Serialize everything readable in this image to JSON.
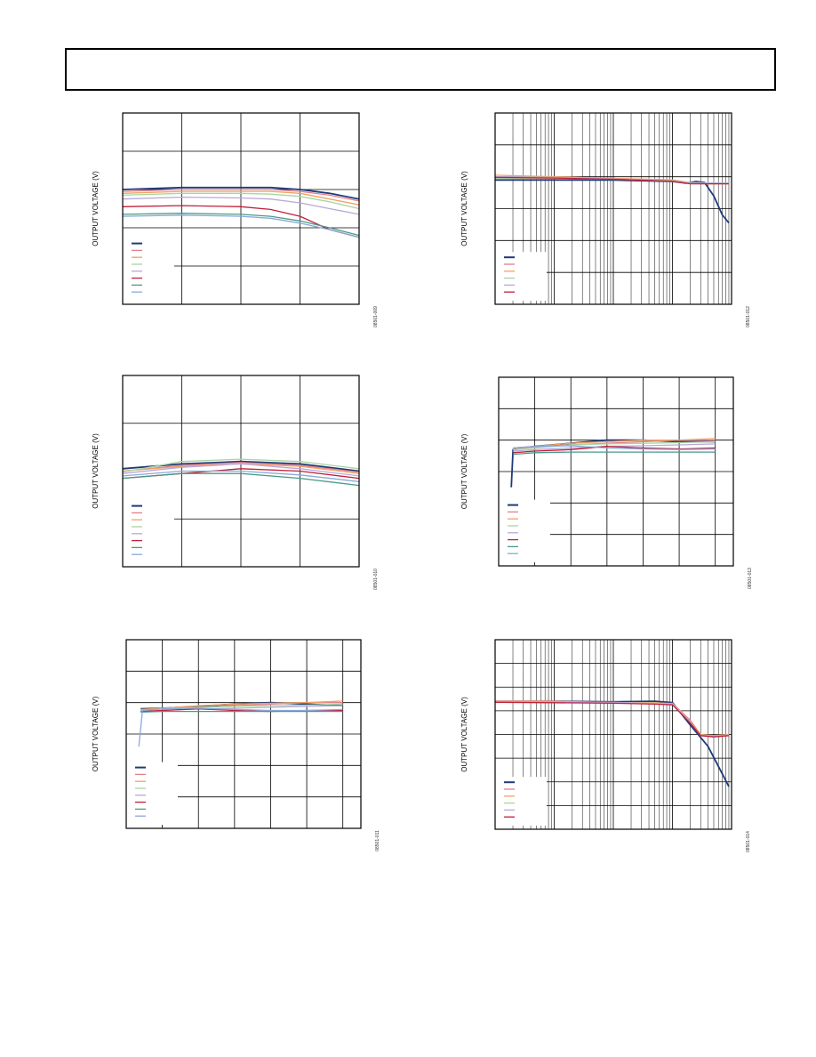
{
  "page": {
    "header_text": ""
  },
  "colors": [
    "#1f3a7a",
    "#e0808a",
    "#f2a065",
    "#a8d5a0",
    "#b8a8d8",
    "#c0203a",
    "#4a9a8a",
    "#8aa8d8"
  ],
  "charts": [
    {
      "ylabel": "OUTPUT VOLTAGE (V)",
      "fig_id": "08501-009",
      "legend_count": 8,
      "chart_data": {
        "type": "line",
        "xscale": "linear",
        "xlim": [
          0,
          4
        ],
        "ylim": [
          0,
          5
        ],
        "grid_x": [
          1,
          2,
          3
        ],
        "grid_y": [
          1,
          2,
          3,
          4
        ],
        "series": [
          {
            "x": [
              0,
              1,
              2,
              2.5,
              3,
              3.5,
              4
            ],
            "y": [
              3.0,
              3.05,
              3.05,
              3.05,
              3.0,
              2.9,
              2.75
            ]
          },
          {
            "x": [
              0,
              1,
              2,
              2.5,
              3,
              3.5,
              4
            ],
            "y": [
              2.95,
              3.0,
              3.0,
              3.0,
              2.95,
              2.85,
              2.7
            ]
          },
          {
            "x": [
              0,
              1,
              2,
              2.5,
              3,
              3.5,
              4
            ],
            "y": [
              2.9,
              2.95,
              2.95,
              2.95,
              2.9,
              2.75,
              2.6
            ]
          },
          {
            "x": [
              0,
              1,
              2,
              2.5,
              3,
              3.5,
              4
            ],
            "y": [
              2.85,
              2.9,
              2.9,
              2.88,
              2.82,
              2.68,
              2.5
            ]
          },
          {
            "x": [
              0,
              1,
              2,
              2.5,
              3,
              3.5,
              4
            ],
            "y": [
              2.75,
              2.8,
              2.78,
              2.75,
              2.65,
              2.5,
              2.35
            ]
          },
          {
            "x": [
              0,
              1,
              2,
              2.5,
              3,
              3.5,
              4
            ],
            "y": [
              2.55,
              2.58,
              2.55,
              2.48,
              2.3,
              1.95,
              1.75
            ]
          },
          {
            "x": [
              0,
              1,
              2,
              2.5,
              3,
              3.5,
              4
            ],
            "y": [
              2.35,
              2.38,
              2.35,
              2.3,
              2.18,
              2.0,
              1.8
            ]
          },
          {
            "x": [
              0,
              1,
              2,
              2.5,
              3,
              3.5,
              4
            ],
            "y": [
              2.3,
              2.33,
              2.3,
              2.25,
              2.12,
              1.95,
              1.75
            ]
          }
        ]
      }
    },
    {
      "ylabel": "OUTPUT VOLTAGE (V)",
      "fig_id": "08501-012",
      "legend_count": 6,
      "chart_data": {
        "type": "line",
        "xscale": "log",
        "xlim": [
          1,
          10000
        ],
        "ylim": [
          0,
          6
        ],
        "grid_x": [
          10,
          100,
          1000
        ],
        "grid_y": [
          1,
          2,
          3,
          4,
          5
        ],
        "series": [
          {
            "x": [
              1,
              10,
              100,
              1000,
              1700,
              2500,
              3500,
              5000,
              7000,
              9000
            ],
            "y": [
              3.9,
              3.9,
              3.9,
              3.85,
              3.8,
              3.85,
              3.82,
              3.4,
              2.8,
              2.55
            ]
          },
          {
            "x": [
              1,
              10,
              100,
              1000,
              2000,
              5000,
              9000
            ],
            "y": [
              4.0,
              3.98,
              3.95,
              3.9,
              3.8,
              3.8,
              3.8
            ]
          },
          {
            "x": [
              1,
              10,
              100,
              1000,
              2000,
              5000,
              9000
            ],
            "y": [
              4.05,
              4.0,
              3.95,
              3.9,
              3.82,
              3.8,
              3.8
            ]
          },
          {
            "x": [
              1,
              10,
              100,
              1000,
              2000,
              5000,
              9000
            ],
            "y": [
              3.95,
              3.95,
              3.92,
              3.88,
              3.8,
              3.78,
              3.78
            ]
          },
          {
            "x": [
              1,
              10,
              100,
              1000,
              2000,
              5000,
              9000
            ],
            "y": [
              4.0,
              3.98,
              3.93,
              3.85,
              3.8,
              3.8,
              3.8
            ]
          },
          {
            "x": [
              1,
              10,
              100,
              1000,
              2000,
              5000,
              9000
            ],
            "y": [
              3.98,
              3.96,
              3.92,
              3.86,
              3.78,
              3.78,
              3.78
            ]
          }
        ]
      }
    },
    {
      "ylabel": "OUTPUT VOLTAGE (V)",
      "fig_id": "08501-010",
      "legend_count": 8,
      "chart_data": {
        "type": "line",
        "xscale": "linear",
        "xlim": [
          0,
          4
        ],
        "ylim": [
          0,
          4
        ],
        "grid_x": [
          1,
          2,
          3
        ],
        "grid_y": [
          1,
          3
        ],
        "series": [
          {
            "x": [
              0,
              1,
              2,
              3,
              4
            ],
            "y": [
              2.05,
              2.15,
              2.2,
              2.15,
              2.0
            ]
          },
          {
            "x": [
              0,
              1,
              2,
              3,
              4
            ],
            "y": [
              2.0,
              2.12,
              2.18,
              2.12,
              1.98
            ]
          },
          {
            "x": [
              0,
              1,
              2,
              3,
              4
            ],
            "y": [
              2.0,
              2.1,
              2.15,
              2.1,
              1.95
            ]
          },
          {
            "x": [
              0,
              1,
              2,
              3,
              4
            ],
            "y": [
              1.98,
              2.2,
              2.25,
              2.2,
              2.05
            ]
          },
          {
            "x": [
              0,
              1,
              2,
              3,
              4
            ],
            "y": [
              1.95,
              2.08,
              2.15,
              2.05,
              1.9
            ]
          },
          {
            "x": [
              0,
              1,
              2,
              3,
              4
            ],
            "y": [
              1.85,
              1.95,
              2.05,
              2.0,
              1.85
            ]
          },
          {
            "x": [
              0,
              1,
              2,
              3,
              4
            ],
            "y": [
              1.85,
              1.95,
              1.95,
              1.85,
              1.7
            ]
          },
          {
            "x": [
              0,
              1,
              2,
              3,
              4
            ],
            "y": [
              1.9,
              2.0,
              2.0,
              1.92,
              1.78
            ]
          }
        ]
      }
    },
    {
      "ylabel": "OUTPUT VOLTAGE (V)",
      "fig_id": "08501-013",
      "legend_count": 8,
      "chart_data": {
        "type": "line",
        "xscale": "linear",
        "xlim": [
          0,
          6.5
        ],
        "ylim": [
          0,
          6
        ],
        "grid_x": [
          1,
          2,
          3,
          4,
          5,
          6
        ],
        "grid_y": [
          1,
          2,
          3,
          4,
          5
        ],
        "series": [
          {
            "x": [
              0.35,
              0.4,
              1,
              2,
              3,
              4,
              5,
              6
            ],
            "y": [
              2.5,
              3.7,
              3.8,
              3.9,
              4.0,
              4.0,
              3.95,
              3.95
            ]
          },
          {
            "x": [
              0.4,
              1,
              2,
              3,
              4,
              5,
              6
            ],
            "y": [
              3.7,
              3.78,
              3.85,
              3.9,
              3.95,
              4.0,
              4.0
            ]
          },
          {
            "x": [
              0.4,
              1,
              2,
              3,
              4,
              5,
              6
            ],
            "y": [
              3.75,
              3.8,
              3.9,
              3.95,
              4.0,
              4.0,
              4.05
            ]
          },
          {
            "x": [
              0.4,
              1,
              2,
              3,
              4,
              5,
              6
            ],
            "y": [
              3.7,
              3.75,
              3.85,
              3.88,
              3.9,
              3.92,
              3.95
            ]
          },
          {
            "x": [
              0.4,
              1,
              2,
              3,
              4,
              5,
              6
            ],
            "y": [
              3.65,
              3.7,
              3.75,
              3.8,
              3.82,
              3.85,
              3.88
            ]
          },
          {
            "x": [
              0.4,
              1,
              2,
              3,
              4,
              5,
              6
            ],
            "y": [
              3.6,
              3.65,
              3.7,
              3.8,
              3.75,
              3.72,
              3.75
            ]
          },
          {
            "x": [
              0.4,
              1,
              2,
              3,
              4,
              5,
              6
            ],
            "y": [
              3.55,
              3.6,
              3.62,
              3.62,
              3.62,
              3.62,
              3.62
            ]
          },
          {
            "x": [
              0.4,
              1,
              2,
              3,
              4,
              5,
              6
            ],
            "y": [
              3.75,
              3.8,
              3.82,
              3.75,
              3.72,
              3.7,
              3.72
            ]
          }
        ]
      }
    },
    {
      "ylabel": "OUTPUT VOLTAGE (V)",
      "fig_id": "08501-011",
      "legend_count": 8,
      "chart_data": {
        "type": "line",
        "xscale": "linear",
        "xlim": [
          0,
          6.5
        ],
        "ylim": [
          0,
          6
        ],
        "grid_x": [
          1,
          2,
          3,
          4,
          5,
          6
        ],
        "grid_y": [
          1,
          2,
          3,
          4,
          5
        ],
        "series": [
          {
            "x": [
              0.4,
              1,
              2,
              3,
              4,
              5,
              6
            ],
            "y": [
              3.8,
              3.82,
              3.88,
              3.95,
              4.0,
              3.95,
              3.9
            ]
          },
          {
            "x": [
              0.4,
              1,
              2,
              3,
              4,
              5,
              6
            ],
            "y": [
              3.75,
              3.8,
              3.85,
              3.9,
              3.95,
              4.0,
              4.0
            ]
          },
          {
            "x": [
              0.4,
              1,
              2,
              3,
              4,
              5,
              6
            ],
            "y": [
              3.78,
              3.82,
              3.9,
              3.95,
              3.98,
              4.0,
              4.05
            ]
          },
          {
            "x": [
              0.4,
              1,
              2,
              3,
              4,
              5,
              6
            ],
            "y": [
              3.75,
              3.8,
              3.85,
              3.88,
              3.9,
              3.92,
              3.95
            ]
          },
          {
            "x": [
              0.4,
              1,
              2,
              3,
              4,
              5,
              6
            ],
            "y": [
              3.7,
              3.75,
              3.8,
              3.82,
              3.85,
              3.88,
              3.9
            ]
          },
          {
            "x": [
              0.4,
              1,
              2,
              3,
              4,
              5,
              6
            ],
            "y": [
              3.72,
              3.75,
              3.8,
              3.75,
              3.72,
              3.75,
              3.75
            ]
          },
          {
            "x": [
              0.4,
              1,
              2,
              3,
              4,
              5,
              6
            ],
            "y": [
              3.7,
              3.72,
              3.72,
              3.72,
              3.72,
              3.72,
              3.72
            ]
          },
          {
            "x": [
              0.35,
              0.45,
              1,
              2,
              3,
              4,
              5,
              6
            ],
            "y": [
              2.6,
              3.75,
              3.8,
              3.82,
              3.78,
              3.75,
              3.75,
              3.78
            ]
          }
        ]
      }
    },
    {
      "ylabel": "OUTPUT VOLTAGE (V)",
      "fig_id": "08501-014",
      "legend_count": 6,
      "chart_data": {
        "type": "line",
        "xscale": "log",
        "xlim": [
          1,
          10000
        ],
        "ylim": [
          0,
          8
        ],
        "grid_x": [
          10,
          100,
          1000
        ],
        "grid_y": [
          1,
          2,
          3,
          4,
          5,
          6,
          7
        ],
        "series": [
          {
            "x": [
              1,
              10,
              100,
              500,
              1000,
              2000,
              4000,
              9000
            ],
            "y": [
              5.4,
              5.4,
              5.38,
              5.4,
              5.35,
              4.4,
              3.5,
              1.8
            ]
          },
          {
            "x": [
              1,
              10,
              100,
              500,
              1000,
              2000,
              3000,
              5000,
              9000
            ],
            "y": [
              5.38,
              5.38,
              5.35,
              5.3,
              5.32,
              4.6,
              4.0,
              3.9,
              4.0
            ]
          },
          {
            "x": [
              1,
              10,
              100,
              500,
              1000,
              2000,
              3000,
              5000,
              9000
            ],
            "y": [
              5.42,
              5.4,
              5.35,
              5.35,
              5.3,
              4.55,
              4.0,
              3.95,
              4.0
            ]
          },
          {
            "x": [
              1,
              10,
              100,
              500,
              1000,
              2000,
              3000,
              5000,
              9000
            ],
            "y": [
              5.38,
              5.36,
              5.35,
              5.32,
              5.3,
              4.5,
              3.95,
              3.9,
              3.95
            ]
          },
          {
            "x": [
              1,
              10,
              100,
              500,
              1000,
              2000,
              3000,
              5000,
              9000
            ],
            "y": [
              5.4,
              5.38,
              5.36,
              5.3,
              5.28,
              4.5,
              3.95,
              3.92,
              3.98
            ]
          },
          {
            "x": [
              1,
              10,
              100,
              500,
              1000,
              2000,
              3000,
              5000,
              9000
            ],
            "y": [
              5.36,
              5.34,
              5.32,
              5.28,
              5.25,
              4.48,
              3.95,
              3.9,
              3.95
            ]
          }
        ]
      }
    }
  ]
}
